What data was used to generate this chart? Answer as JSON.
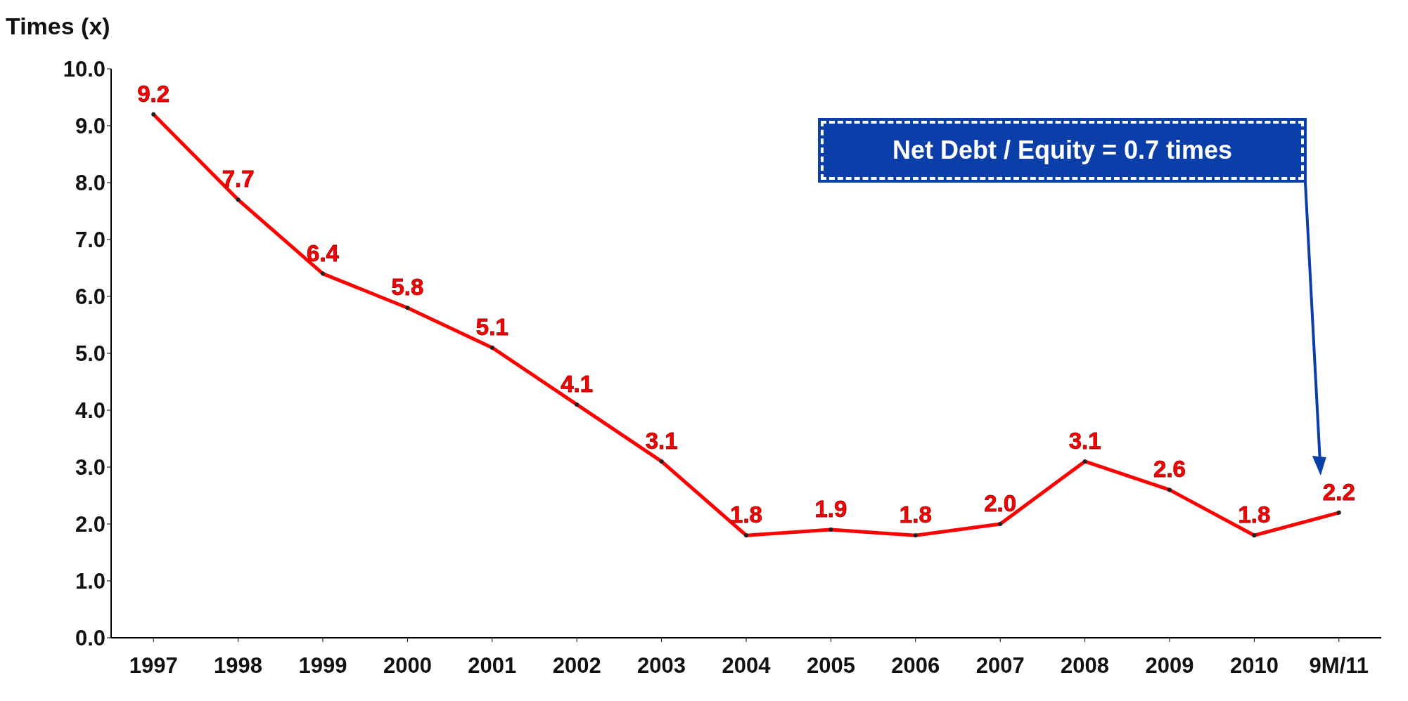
{
  "chart_data": {
    "type": "line",
    "ylabel": "Times (x)",
    "categories": [
      "1997",
      "1998",
      "1999",
      "2000",
      "2001",
      "2002",
      "2003",
      "2004",
      "2005",
      "2006",
      "2007",
      "2008",
      "2009",
      "2010",
      "9M/11"
    ],
    "series": [
      {
        "color": "#ff0000",
        "values": [
          9.2,
          7.7,
          6.4,
          5.8,
          5.1,
          4.1,
          3.1,
          1.8,
          1.9,
          1.8,
          2.0,
          3.1,
          2.6,
          1.8,
          2.2
        ]
      }
    ],
    "ylim": [
      0,
      10
    ],
    "yticks": [
      {
        "value": 0,
        "label": "0.0"
      },
      {
        "value": 1,
        "label": "1.0"
      },
      {
        "value": 2,
        "label": "2.0"
      },
      {
        "value": 3,
        "label": "3.0"
      },
      {
        "value": 4,
        "label": "4.0"
      },
      {
        "value": 5,
        "label": "5.0"
      },
      {
        "value": 6,
        "label": "6.0"
      },
      {
        "value": 7,
        "label": "7.0"
      },
      {
        "value": 8,
        "label": "8.0"
      },
      {
        "value": 9,
        "label": "9.0"
      },
      {
        "value": 10,
        "label": "10.0"
      }
    ],
    "value_labels": [
      "9.2",
      "7.7",
      "6.4",
      "5.8",
      "5.1",
      "4.1",
      "3.1",
      "1.8",
      "1.9",
      "1.8",
      "2.0",
      "3.1",
      "2.6",
      "1.8",
      "2.2"
    ],
    "grid": false,
    "legend": false,
    "marker": "circle",
    "line_style": "solid",
    "annotations": [
      "Net Debt / Equity = 0.7 times"
    ]
  }
}
